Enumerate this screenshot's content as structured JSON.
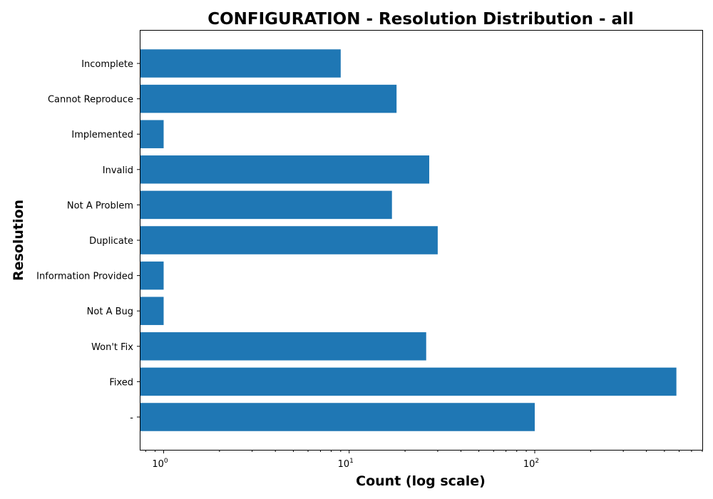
{
  "chart_data": {
    "type": "bar",
    "orientation": "horizontal",
    "title": "CONFIGURATION - Resolution Distribution - all",
    "xlabel": "Count (log scale)",
    "ylabel": "Resolution",
    "x_scale": "log",
    "xlim": [
      0.75,
      800
    ],
    "x_ticks": [
      {
        "value": 1,
        "base": "10",
        "exp": "0"
      },
      {
        "value": 10,
        "base": "10",
        "exp": "1"
      },
      {
        "value": 100,
        "base": "10",
        "exp": "2"
      }
    ],
    "categories": [
      "Incomplete",
      "Cannot Reproduce",
      "Implemented",
      "Invalid",
      "Not A Problem",
      "Duplicate",
      "Information Provided",
      "Not A Bug",
      "Won't Fix",
      "Fixed",
      "-"
    ],
    "values": [
      9,
      18,
      1,
      27,
      17,
      30,
      1,
      1,
      26,
      580,
      100
    ],
    "bar_color": "#1f77b4",
    "grid": false,
    "legend": "none"
  }
}
